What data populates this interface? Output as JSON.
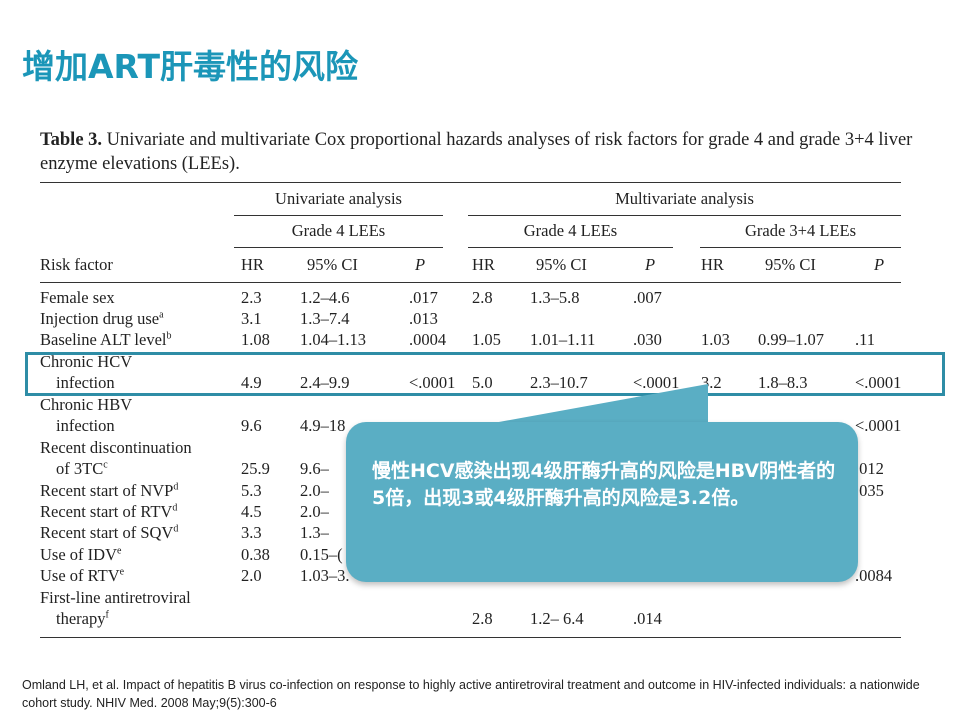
{
  "slide_title": "增加ART肝毒性的风险",
  "table": {
    "caption_label": "Table 3.",
    "caption_text": "Univariate and multivariate Cox proportional hazards analyses of risk factors for grade 4 and grade 3+4 liver enzyme elevations (LEEs).",
    "group_headers": {
      "univariate": "Univariate analysis",
      "multivariate": "Multivariate analysis"
    },
    "sub_headers": {
      "uni_grade4": "Grade 4 LEEs",
      "multi_grade4": "Grade 4 LEEs",
      "multi_grade34": "Grade 3+4 LEEs"
    },
    "columns": {
      "risk_factor": "Risk factor",
      "hr": "HR",
      "ci": "95% CI",
      "p": "P"
    },
    "rows": [
      {
        "label": "Female sex",
        "sup": "",
        "label2": "",
        "u_hr": "2.3",
        "u_ci": "1.2–4.6",
        "u_p": ".017",
        "m4_hr": "2.8",
        "m4_ci": "1.3–5.8",
        "m4_p": ".007",
        "m34_hr": "",
        "m34_ci": "",
        "m34_p": ""
      },
      {
        "label": "Injection drug use",
        "sup": "a",
        "label2": "",
        "u_hr": "3.1",
        "u_ci": "1.3–7.4",
        "u_p": ".013",
        "m4_hr": "",
        "m4_ci": "",
        "m4_p": "",
        "m34_hr": "",
        "m34_ci": "",
        "m34_p": ""
      },
      {
        "label": "Baseline ALT level",
        "sup": "b",
        "label2": "",
        "u_hr": "1.08",
        "u_ci": "1.04–1.13",
        "u_p": ".0004",
        "m4_hr": "1.05",
        "m4_ci": "1.01–1.11",
        "m4_p": ".030",
        "m34_hr": "1.03",
        "m34_ci": "0.99–1.07",
        "m34_p": ".11"
      },
      {
        "label": "Chronic HCV",
        "sup": "",
        "label2": "infection",
        "u_hr": "4.9",
        "u_ci": "2.4–9.9",
        "u_p": "<.0001",
        "m4_hr": "5.0",
        "m4_ci": "2.3–10.7",
        "m4_p": "<.0001",
        "m34_hr": "3.2",
        "m34_ci": "1.8–8.3",
        "m34_p": "<.0001"
      },
      {
        "label": "Chronic HBV",
        "sup": "",
        "label2": "infection",
        "u_hr": "9.6",
        "u_ci": "4.9–18",
        "u_p": "",
        "m4_hr": "",
        "m4_ci": "",
        "m4_p": "",
        "m34_hr": "",
        "m34_ci": "",
        "m34_p": "<.0001"
      },
      {
        "label": "Recent discontinuation",
        "sup": "",
        "label2": "of 3TC",
        "sup2": "c",
        "u_hr": "25.9",
        "u_ci": "9.6–",
        "u_p": "",
        "m4_hr": "",
        "m4_ci": "",
        "m4_p": "",
        "m34_hr": "",
        "m34_ci": "",
        "m34_p": ".012"
      },
      {
        "label": "Recent start of NVP",
        "sup": "d",
        "label2": "",
        "u_hr": "5.3",
        "u_ci": "2.0–",
        "u_p": "",
        "m4_hr": "",
        "m4_ci": "",
        "m4_p": "",
        "m34_hr": "",
        "m34_ci": "",
        "m34_p": ".035"
      },
      {
        "label": "Recent start of RTV",
        "sup": "d",
        "label2": "",
        "u_hr": "4.5",
        "u_ci": "2.0–",
        "u_p": "",
        "m4_hr": "",
        "m4_ci": "",
        "m4_p": "",
        "m34_hr": "",
        "m34_ci": "",
        "m34_p": ""
      },
      {
        "label": "Recent start of SQV",
        "sup": "d",
        "label2": "",
        "u_hr": "3.3",
        "u_ci": "1.3–",
        "u_p": "",
        "m4_hr": "",
        "m4_ci": "",
        "m4_p": "",
        "m34_hr": "",
        "m34_ci": "",
        "m34_p": ""
      },
      {
        "label": "Use of IDV",
        "sup": "e",
        "label2": "",
        "u_hr": "0.38",
        "u_ci": "0.15–(",
        "u_p": "",
        "m4_hr": "",
        "m4_ci": "",
        "m4_p": "",
        "m34_hr": "",
        "m34_ci": "",
        "m34_p": ""
      },
      {
        "label": "Use of RTV",
        "sup": "e",
        "label2": "",
        "u_hr": "2.0",
        "u_ci": "1.03–3.",
        "u_p": "",
        "m4_hr": "",
        "m4_ci": "",
        "m4_p": "",
        "m34_hr": "",
        "m34_ci": "",
        "m34_p": ".0084"
      },
      {
        "label": "First-line antiretroviral",
        "sup": "",
        "label2": "therapy",
        "sup2": "f",
        "u_hr": "",
        "u_ci": "",
        "u_p": "",
        "m4_hr": "2.8",
        "m4_ci": "1.2– 6.4",
        "m4_p": ".014",
        "m34_hr": "",
        "m34_ci": "",
        "m34_p": ""
      }
    ]
  },
  "callout": {
    "text": "慢性HCV感染出现4级肝酶升高的风险是HBV阴性者的5倍，出现3或4级肝酶升高的风险是3.2倍。"
  },
  "footnote": "Omland LH, et al. Impact of hepatitis B virus co-infection on response to highly active antiretroviral treatment and outcome in HIV-infected individuals: a nationwide cohort study. NHIV Med. 2008 May;9(5):300-6",
  "colors": {
    "title": "#1b96b8",
    "highlight_border": "#2e8da6",
    "callout_fill": "#5aaec4"
  }
}
